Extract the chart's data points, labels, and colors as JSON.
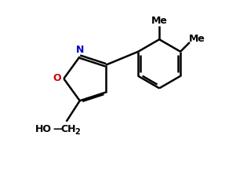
{
  "bg_color": "#ffffff",
  "line_color": "#000000",
  "n_color": "#0000cc",
  "o_color": "#cc0000",
  "bond_lw": 1.8,
  "figsize": [
    3.15,
    2.19
  ],
  "dpi": 100,
  "xlim": [
    0,
    10
  ],
  "ylim": [
    0,
    7
  ]
}
